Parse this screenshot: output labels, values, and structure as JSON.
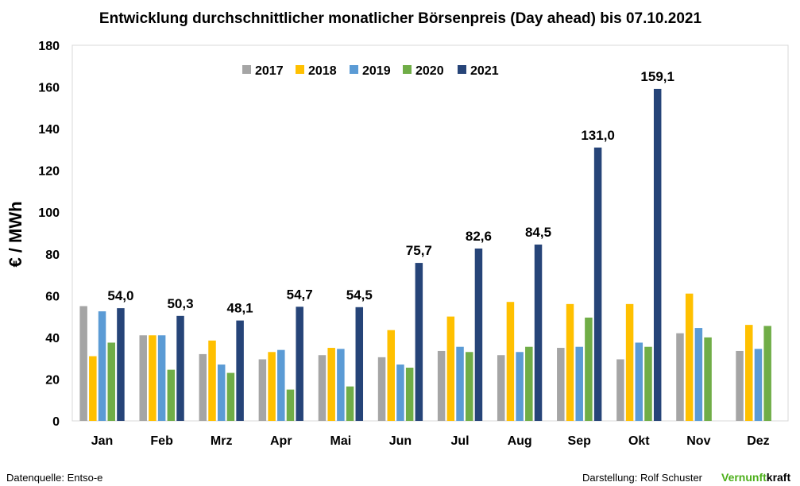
{
  "chart_data": {
    "type": "bar",
    "title": "Entwicklung durchschnittlicher monatlicher Börsenpreis (Day ahead) bis 07.10.2021",
    "xlabel": "",
    "ylabel": "€  /  MWh",
    "ylim": [
      0,
      180
    ],
    "yticks": [
      0,
      20,
      40,
      60,
      80,
      100,
      120,
      140,
      160,
      180
    ],
    "grid": false,
    "legend_position": "top-center",
    "categories": [
      "Jan",
      "Feb",
      "Mrz",
      "Apr",
      "Mai",
      "Jun",
      "Jul",
      "Aug",
      "Sep",
      "Okt",
      "Nov",
      "Dez"
    ],
    "series": [
      {
        "name": "2017",
        "color": "#a5a5a5",
        "values": [
          55.0,
          41.0,
          32.0,
          29.5,
          31.5,
          30.5,
          33.5,
          31.5,
          35.0,
          29.5,
          42.0,
          33.5
        ]
      },
      {
        "name": "2018",
        "color": "#ffc000",
        "values": [
          31.0,
          41.0,
          38.5,
          33.0,
          35.0,
          43.5,
          50.0,
          57.0,
          56.0,
          56.0,
          61.0,
          46.0
        ]
      },
      {
        "name": "2019",
        "color": "#5b9bd5",
        "values": [
          52.5,
          41.0,
          27.0,
          34.0,
          34.5,
          27.0,
          35.5,
          33.0,
          35.5,
          37.5,
          44.5,
          34.5
        ]
      },
      {
        "name": "2020",
        "color": "#70ad47",
        "values": [
          37.5,
          24.5,
          23.0,
          15.0,
          16.5,
          25.5,
          33.0,
          35.5,
          49.5,
          35.5,
          40.0,
          45.5
        ]
      },
      {
        "name": "2021",
        "color": "#264478",
        "values": [
          54.0,
          50.3,
          48.1,
          54.7,
          54.5,
          75.7,
          82.6,
          84.5,
          131.0,
          159.1,
          null,
          null
        ],
        "labels": [
          "54,0",
          "50,3",
          "48,1",
          "54,7",
          "54,5",
          "75,7",
          "82,6",
          "84,5",
          "131,0",
          "159,1",
          "",
          ""
        ]
      }
    ]
  },
  "footer": {
    "source": "Datenquelle: Entso-e",
    "credit": "Darstellung:  Rolf Schuster",
    "brand_part1": "Vernunft",
    "brand_part2": "kraft"
  }
}
